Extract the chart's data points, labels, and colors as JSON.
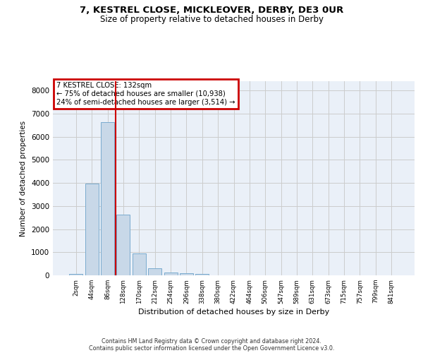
{
  "title1": "7, KESTREL CLOSE, MICKLEOVER, DERBY, DE3 0UR",
  "title2": "Size of property relative to detached houses in Derby",
  "xlabel": "Distribution of detached houses by size in Derby",
  "ylabel": "Number of detached properties",
  "categories": [
    "2sqm",
    "44sqm",
    "86sqm",
    "128sqm",
    "170sqm",
    "212sqm",
    "254sqm",
    "296sqm",
    "338sqm",
    "380sqm",
    "422sqm",
    "464sqm",
    "506sqm",
    "547sqm",
    "589sqm",
    "631sqm",
    "673sqm",
    "715sqm",
    "757sqm",
    "799sqm",
    "841sqm"
  ],
  "bar_values": [
    70,
    3980,
    6620,
    2620,
    950,
    320,
    120,
    100,
    70,
    0,
    0,
    0,
    0,
    0,
    0,
    0,
    0,
    0,
    0,
    0,
    0
  ],
  "bar_color": "#c8d8e8",
  "bar_edgecolor": "#7aabcf",
  "grid_color": "#cccccc",
  "background_color": "#eaf0f8",
  "vline_color": "#cc0000",
  "annotation_text": "7 KESTREL CLOSE: 132sqm\n← 75% of detached houses are smaller (10,938)\n24% of semi-detached houses are larger (3,514) →",
  "annotation_box_color": "#cc0000",
  "ylim": [
    0,
    8400
  ],
  "yticks": [
    0,
    1000,
    2000,
    3000,
    4000,
    5000,
    6000,
    7000,
    8000
  ],
  "footer1": "Contains HM Land Registry data © Crown copyright and database right 2024.",
  "footer2": "Contains public sector information licensed under the Open Government Licence v3.0."
}
